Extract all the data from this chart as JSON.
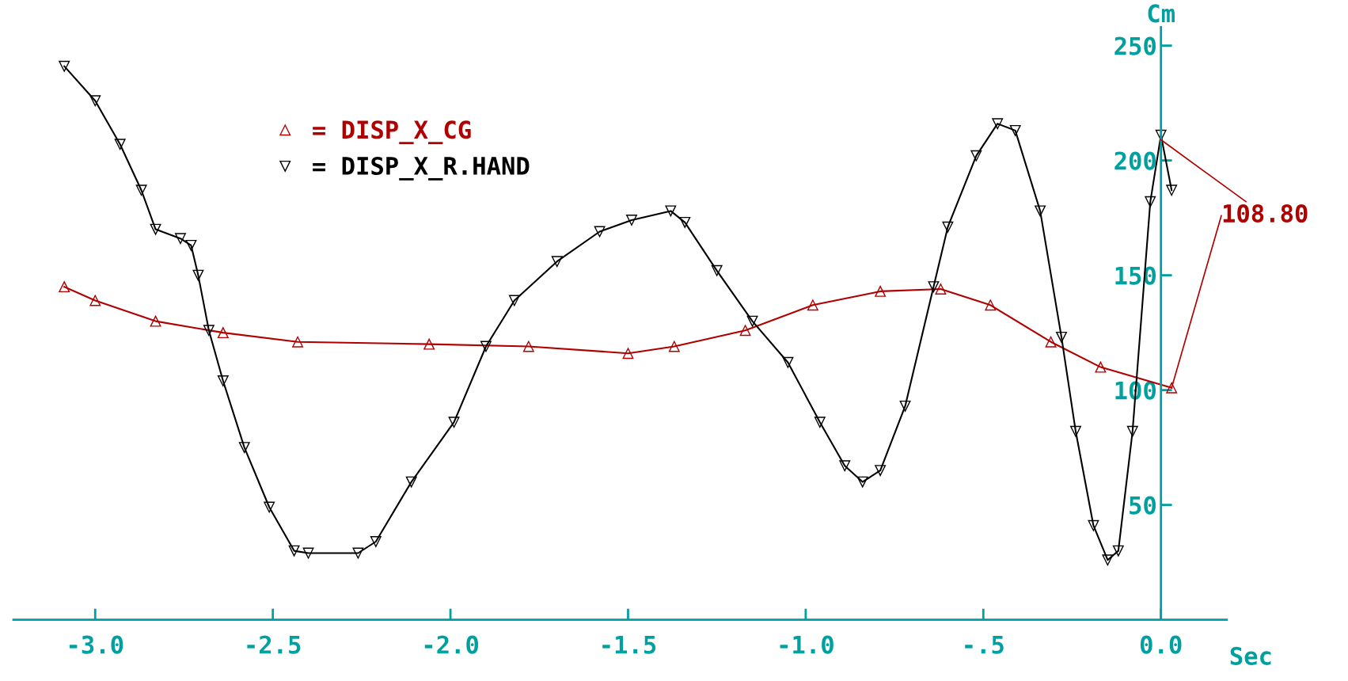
{
  "chart_data": {
    "type": "line",
    "xlabel": "Sec",
    "ylabel": "Cm",
    "xlim": [
      -3.23,
      0.185
    ],
    "ylim": [
      0,
      258
    ],
    "xticks": [
      {
        "value": -3.0,
        "label": "-3.0"
      },
      {
        "value": -2.5,
        "label": "-2.5"
      },
      {
        "value": -2.0,
        "label": "-2.0"
      },
      {
        "value": -1.5,
        "label": "-1.5"
      },
      {
        "value": -1.0,
        "label": "-1.0"
      },
      {
        "value": -0.5,
        "label": "-.5"
      },
      {
        "value": 0.0,
        "label": "0.0"
      }
    ],
    "yticks": [
      50,
      100,
      150,
      200,
      250
    ],
    "grid": false,
    "legend": "top left",
    "line_style": "solid",
    "series": [
      {
        "name": "= DISP_X_CG",
        "color": "#b00000",
        "marker": "triangle",
        "x": [
          -3.087,
          -3.0,
          -2.83,
          -2.64,
          -2.43,
          -2.06,
          -1.78,
          -1.5,
          -1.37,
          -1.17,
          -0.98,
          -0.79,
          -0.62,
          -0.48,
          -0.31,
          -0.17,
          0.03
        ],
        "values": [
          145,
          139,
          130,
          125,
          121,
          120,
          119,
          116,
          119,
          126,
          137,
          143,
          144,
          137,
          121,
          110,
          101
        ]
      },
      {
        "name": "= DISP_X_R.HAND",
        "color": "#000000",
        "marker": "triangle_down",
        "x": [
          -3.087,
          -3.0,
          -2.93,
          -2.87,
          -2.83,
          -2.76,
          -2.73,
          -2.71,
          -2.68,
          -2.64,
          -2.58,
          -2.51,
          -2.44,
          -2.4,
          -2.26,
          -2.21,
          -2.11,
          -1.99,
          -1.9,
          -1.82,
          -1.7,
          -1.58,
          -1.49,
          -1.38,
          -1.34,
          -1.25,
          -1.15,
          -1.05,
          -0.96,
          -0.89,
          -0.84,
          -0.79,
          -0.72,
          -0.64,
          -0.6,
          -0.52,
          -0.46,
          -0.41,
          -0.34,
          -0.28,
          -0.24,
          -0.19,
          -0.15,
          -0.12,
          -0.08,
          -0.03,
          0.0,
          0.03
        ],
        "values": [
          241,
          226,
          207,
          187,
          170,
          166,
          163,
          150,
          126,
          104,
          75,
          49,
          30,
          29,
          29,
          34,
          60,
          86,
          119,
          139,
          156,
          169,
          174,
          178,
          173,
          152,
          130,
          112,
          86,
          67,
          60,
          65,
          93,
          145,
          171,
          202,
          216,
          213,
          178,
          123,
          82,
          41,
          26,
          30,
          82,
          182,
          211,
          187
        ]
      }
    ],
    "annotations": [
      {
        "text": "108.80",
        "x": 0.0,
        "y": 209
      }
    ]
  }
}
